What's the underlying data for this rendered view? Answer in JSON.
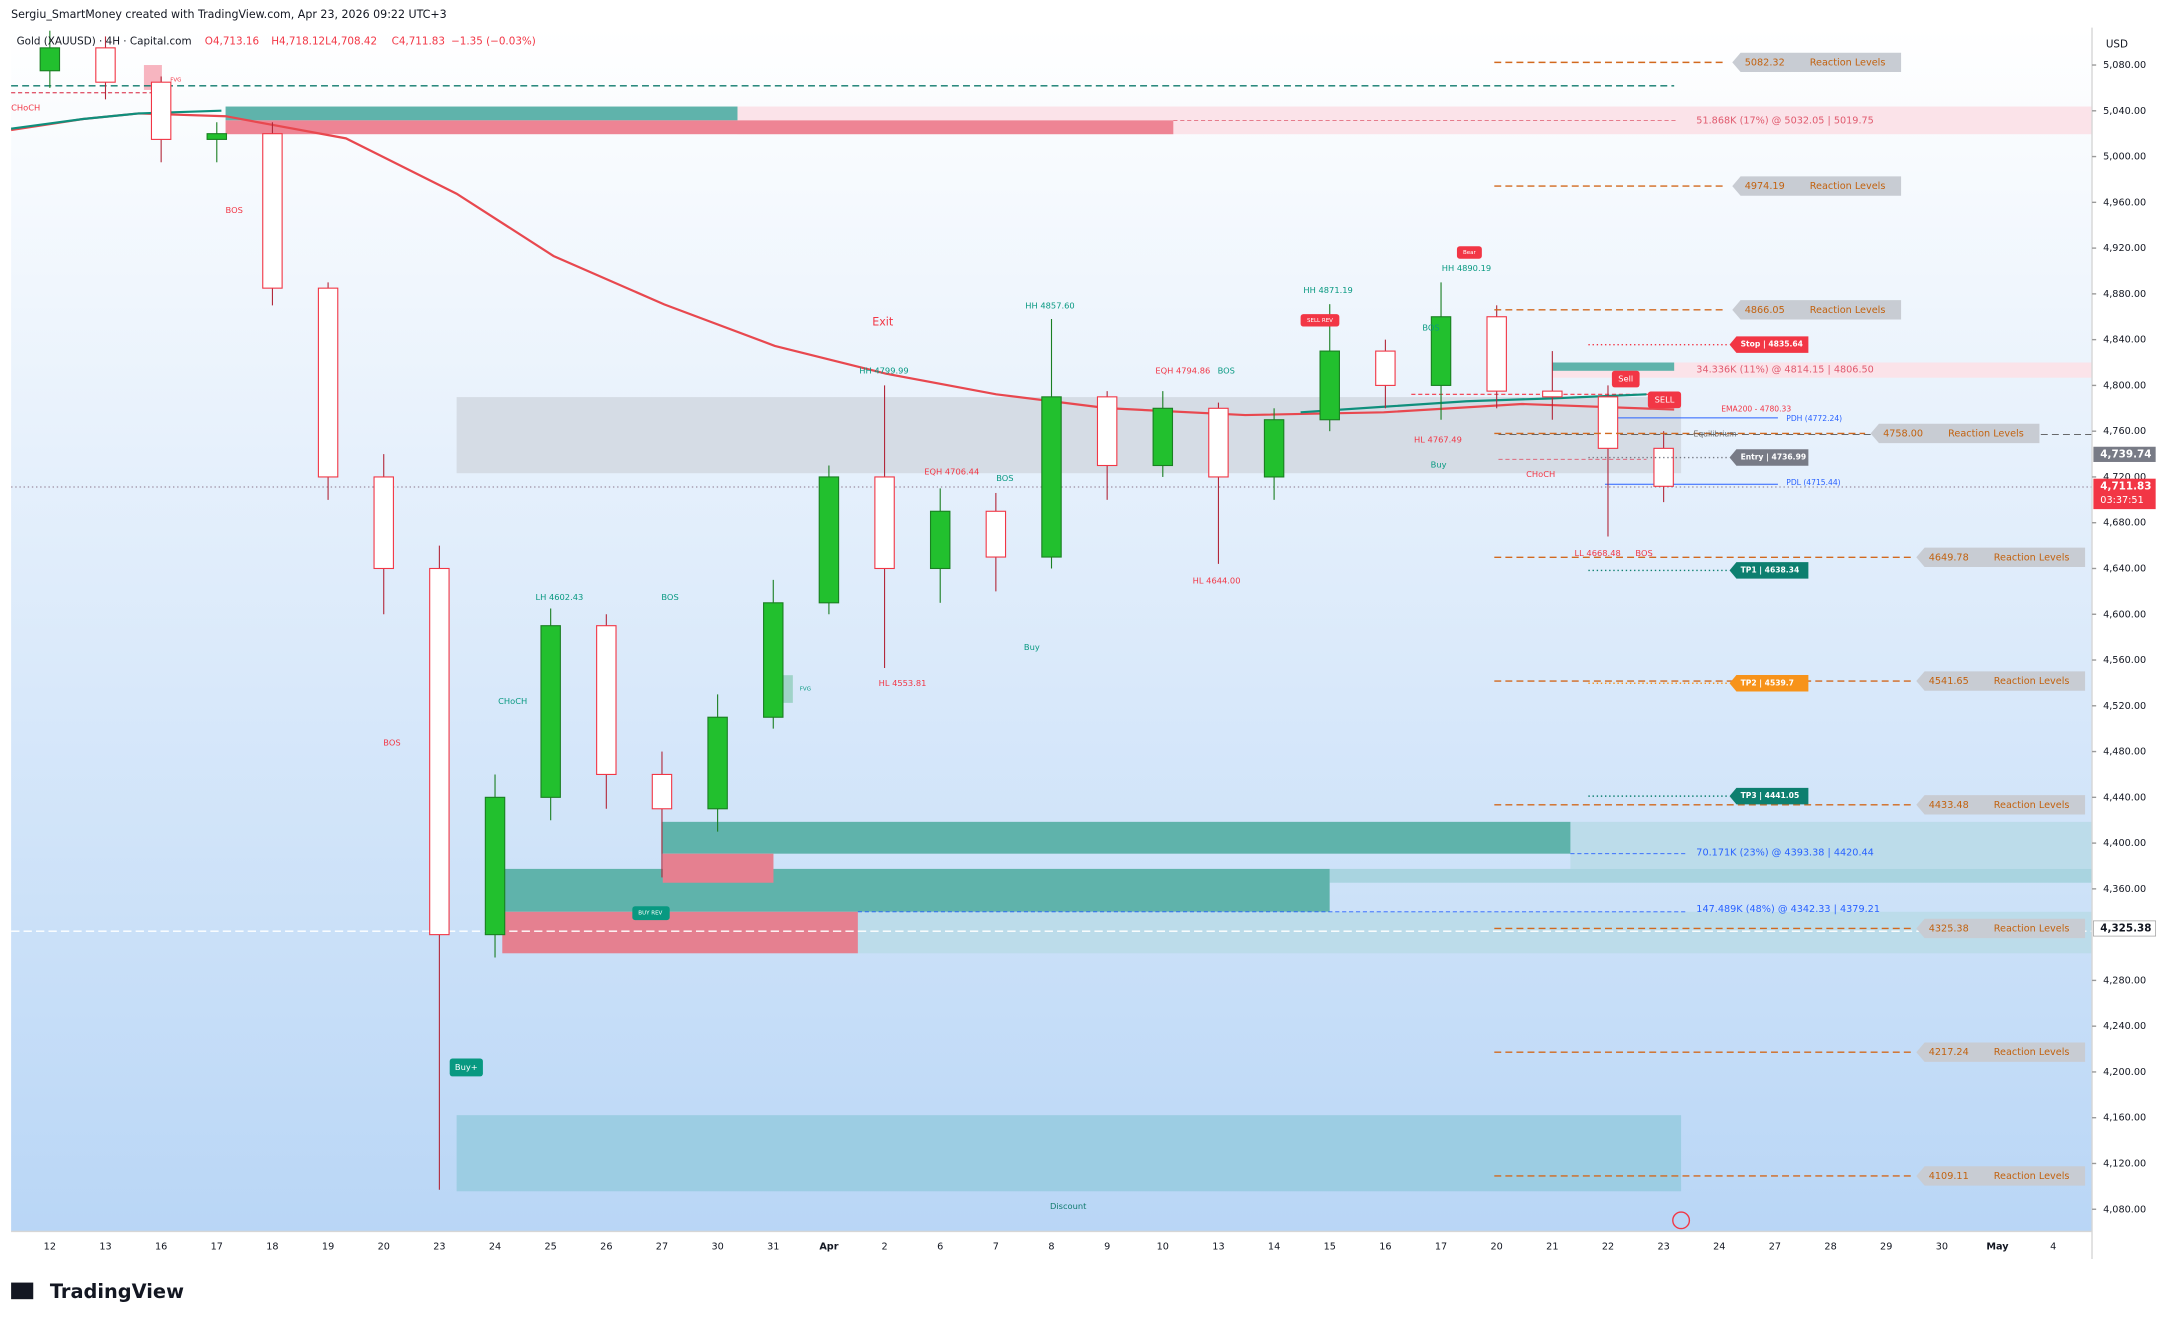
{
  "header": {
    "credit": "Sergiu_SmartMoney created with TradingView.com, Apr 23, 2026 09:22 UTC+3",
    "symbol": "Gold (XAUUSD) · 4H · Capital.com",
    "ohlc": [
      "O4,713.16",
      "H4,718.12",
      "L4,708.42",
      "C4,711.83",
      "−1.35 (−0.03%)"
    ]
  },
  "price_axis": {
    "currency": "USD",
    "ticks": [
      {
        "value": 5080,
        "label": "5,080.00"
      },
      {
        "value": 5040,
        "label": "5,040.00"
      },
      {
        "value": 5000,
        "label": "5,000.00"
      },
      {
        "value": 4960,
        "label": "4,960.00"
      },
      {
        "value": 4920,
        "label": "4,920.00"
      },
      {
        "value": 4880,
        "label": "4,880.00"
      },
      {
        "value": 4840,
        "label": "4,840.00"
      },
      {
        "value": 4800,
        "label": "4,800.00"
      },
      {
        "value": 4760,
        "label": "4,760.00"
      },
      {
        "value": 4720,
        "label": "4,720.00"
      },
      {
        "value": 4680,
        "label": "4,680.00"
      },
      {
        "value": 4640,
        "label": "4,640.00"
      },
      {
        "value": 4600,
        "label": "4,600.00"
      },
      {
        "value": 4560,
        "label": "4,560.00"
      },
      {
        "value": 4520,
        "label": "4,520.00"
      },
      {
        "value": 4480,
        "label": "4,480.00"
      },
      {
        "value": 4440,
        "label": "4,440.00"
      },
      {
        "value": 4400,
        "label": "4,400.00"
      },
      {
        "value": 4360,
        "label": "4,360.00"
      },
      {
        "value": 4280,
        "label": "4,280.00"
      },
      {
        "value": 4240,
        "label": "4,240.00"
      },
      {
        "value": 4200,
        "label": "4,200.00"
      },
      {
        "value": 4160,
        "label": "4,160.00"
      },
      {
        "value": 4120,
        "label": "4,120.00"
      },
      {
        "value": 4080,
        "label": "4,080.00"
      }
    ],
    "tags": [
      {
        "value": 4739.74,
        "label": "4,739.74"
      },
      {
        "value": 4711.83,
        "label": "4,711.83",
        "countdown": "03:37:51"
      },
      {
        "value": 4325.38,
        "label": "4,325.38"
      }
    ]
  },
  "date_axis": [
    "12",
    "13",
    "16",
    "17",
    "18",
    "19",
    "20",
    "23",
    "24",
    "25",
    "26",
    "27",
    "30",
    "31",
    "Apr",
    "2",
    "6",
    "7",
    "8",
    "9",
    "10",
    "13",
    "14",
    "15",
    "16",
    "17",
    "20",
    "21",
    "22",
    "23",
    "24",
    "27",
    "28",
    "29",
    "30",
    "May",
    "4"
  ],
  "candles": {
    "open": [
      5075,
      5095,
      5065,
      5015,
      5020,
      4885,
      4720,
      4640,
      4320,
      4440,
      4590,
      4460,
      4430,
      4510,
      4610,
      4720,
      4640,
      4690,
      4650,
      4790,
      4730,
      4780,
      4720,
      4770,
      4830,
      4800,
      4860,
      4795,
      4790,
      4745
    ],
    "high": [
      5110,
      5105,
      5070,
      5030,
      5030,
      4890,
      4740,
      4660,
      4460,
      4605,
      4600,
      4480,
      4530,
      4630,
      4730,
      4800,
      4710,
      4706,
      4858,
      4795,
      4795,
      4785,
      4780,
      4871,
      4840,
      4890,
      4870,
      4830,
      4800,
      4760
    ],
    "low": [
      5060,
      5050,
      4995,
      4995,
      4870,
      4700,
      4600,
      4097,
      4300,
      4420,
      4430,
      4370,
      4410,
      4500,
      4600,
      4553,
      4610,
      4620,
      4640,
      4700,
      4720,
      4644,
      4700,
      4760,
      4780,
      4770,
      4780,
      4770,
      4668,
      4698
    ],
    "close": [
      5095,
      5065,
      5015,
      5020,
      4885,
      4720,
      4640,
      4320,
      4440,
      4590,
      4460,
      4430,
      4510,
      4610,
      4720,
      4640,
      4690,
      4650,
      4790,
      4730,
      4780,
      4720,
      4770,
      4830,
      4800,
      4860,
      4795,
      4790,
      4745,
      4711.83
    ]
  },
  "levels_text": "Reaction Levels",
  "levels": [
    {
      "value": 5082.32,
      "label": "5082.32"
    },
    {
      "value": 4974.19,
      "label": "4974.19"
    },
    {
      "value": 4866.05,
      "label": "4866.05"
    },
    {
      "value": 4758.0,
      "label": "4758.00"
    },
    {
      "value": 4649.78,
      "label": "4649.78"
    },
    {
      "value": 4541.65,
      "label": "4541.65"
    },
    {
      "value": 4433.48,
      "label": "4433.48"
    },
    {
      "value": 4325.38,
      "label": "4325.38"
    },
    {
      "value": 4217.24,
      "label": "4217.24"
    },
    {
      "value": 4109.11,
      "label": "4109.11"
    }
  ],
  "trades": [
    {
      "value": 4835.64,
      "label": "Stop | 4835.64"
    },
    {
      "value": 4736.99,
      "label": "Entry | 4736.99"
    },
    {
      "value": 4638.34,
      "label": "TP1 | 4638.34"
    },
    {
      "value": 4539.7,
      "label": "TP2 | 4539.7"
    },
    {
      "value": 4441.05,
      "label": "TP3 | 4441.05"
    }
  ],
  "order_blocks": [
    "51.868K (17%) @ 5032.05 | 5019.75",
    "34.336K (11%) @ 4814.15 | 4806.50",
    "70.171K (23%) @ 4393.38 | 4420.44",
    "147.489K (48%) @ 4342.33 | 4379.21"
  ],
  "annotations": [
    "CHoCH",
    "BOS",
    "FVG",
    "BOS",
    "CHoCH",
    "LH 4602.43",
    "BOS",
    "BUY REV",
    "Buy+",
    "HL 4553.81",
    "EQH 4706.44",
    "BOS",
    "HH 4799.99",
    "Exit",
    "HH 4857.60",
    "Buy",
    "EQH 4794.86",
    "BOS",
    "HL 4644.00",
    "HH 4871.19",
    "SELL REV",
    "BOS",
    "HH 4890.19",
    "Bear",
    "HL 4767.49",
    "Buy",
    "CHoCH",
    "LL 4668.48",
    "BOS",
    "Sell",
    "SELL",
    "EMA200 - 4780.33",
    "PDH (4772.24)",
    "PDL (4715.44)",
    "Equilibrium",
    "Discount",
    "FVG"
  ],
  "logo": "TradingView"
}
